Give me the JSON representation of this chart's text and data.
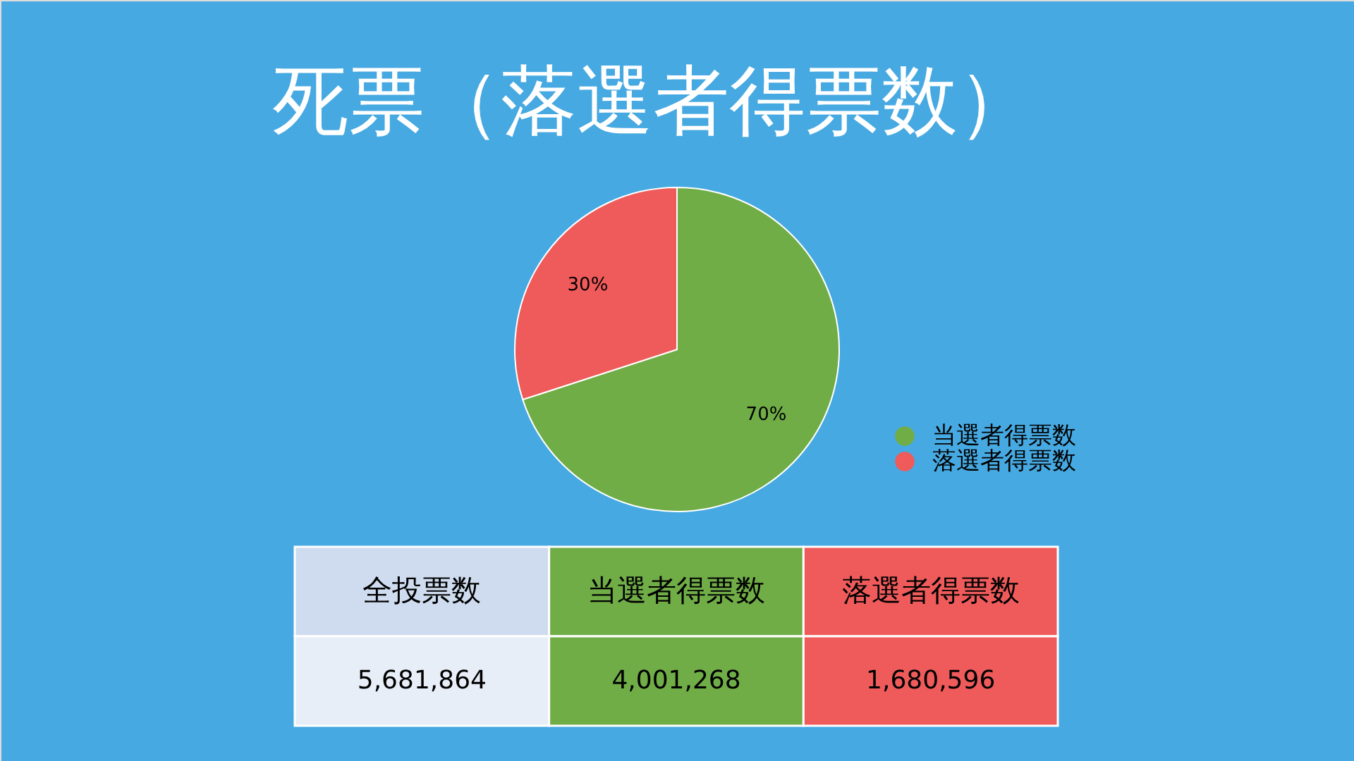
{
  "chart_data": {
    "type": "pie",
    "title": "死票（落選者得票数）",
    "categories": [
      "当選者得票数",
      "落選者得票数"
    ],
    "values": [
      70,
      30
    ],
    "colors": [
      "#70ad47",
      "#ef5b5b"
    ],
    "value_labels": [
      "70%",
      "30%"
    ],
    "annotations": [
      "全投票数",
      "5,681,864",
      "4,001,268",
      "1,680,596"
    ],
    "legend": "right"
  }
}
